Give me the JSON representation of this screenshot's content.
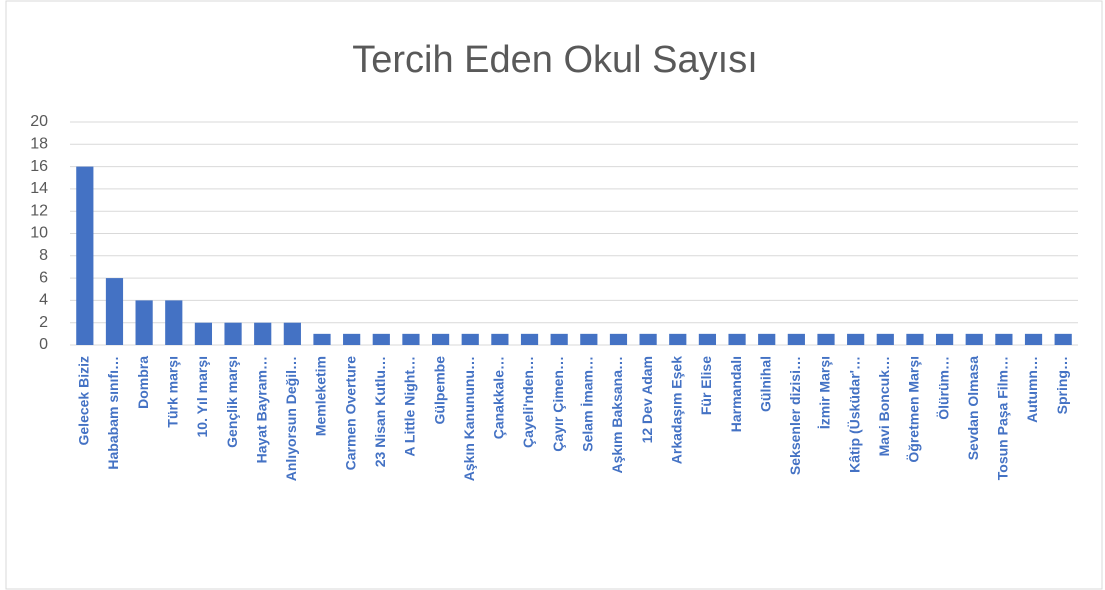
{
  "chart_data": {
    "type": "bar",
    "title": "Tercih Eden Okul Sayısı",
    "categories": [
      "Gelecek Biziz",
      "Hababam sınıfı…",
      "Dombra",
      "Türk marşı",
      "10. Yıl marşı",
      "Gençlik marşı",
      "Hayat Bayram…",
      "Anlıyorsun Değil…",
      "Memleketim",
      "Carmen Overture",
      "23 Nisan Kutlu…",
      "A Little Night…",
      "Gülpembe",
      "Aşkın Kanununu…",
      "Çanakkale…",
      "Çayeli'nden…",
      "Çayır Çimen…",
      "Selam İmam…",
      "Aşkım Baksana…",
      "12 Dev Adam",
      "Arkadaşım Eşek",
      "Für Elise",
      "Harmandalı",
      "Gülnihal",
      "Seksenler dizisi…",
      "İzmir Marşı",
      "Kâtip (Üsküdar'…",
      "Mavi Boncuk…",
      "Öğretmen Marşı",
      "Ölürüm…",
      "Sevdan Olmasa",
      "Tosun Paşa Film…",
      "Autumn…",
      "Spring…"
    ],
    "values": [
      16,
      6,
      4,
      4,
      2,
      2,
      2,
      2,
      1,
      1,
      1,
      1,
      1,
      1,
      1,
      1,
      1,
      1,
      1,
      1,
      1,
      1,
      1,
      1,
      1,
      1,
      1,
      1,
      1,
      1,
      1,
      1,
      1,
      1
    ],
    "color": "#4472c4",
    "ylim": [
      0,
      20
    ],
    "yticks": [
      0,
      2,
      4,
      6,
      8,
      10,
      12,
      14,
      16,
      18,
      20
    ],
    "grid": true
  }
}
